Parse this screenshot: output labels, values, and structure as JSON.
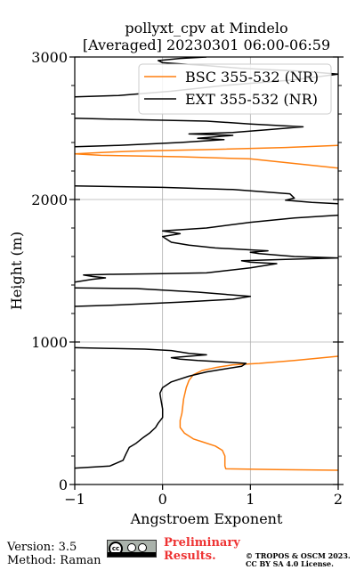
{
  "chart_data": {
    "type": "line",
    "title_line1": "pollyxt_cpv at Mindelo",
    "title_line2": "[Averaged] 20230301 06:00-06:59",
    "xlabel": "Angstroem Exponent",
    "ylabel": "Height (m)",
    "xlim": [
      -1,
      2
    ],
    "ylim": [
      0,
      3000
    ],
    "x_ticks": [
      "−1",
      "0",
      "1",
      "2"
    ],
    "y_ticks": [
      "0",
      "1000",
      "2000",
      "3000"
    ],
    "grid": true,
    "legend_position": "top-right",
    "series": [
      {
        "name": "BSC 355-532 (NR)",
        "color": "#ff7f0e",
        "points": [
          [
            2.0,
            100
          ],
          [
            1.3,
            105
          ],
          [
            0.72,
            110
          ],
          [
            0.71,
            130
          ],
          [
            0.71,
            200
          ],
          [
            0.68,
            240
          ],
          [
            0.6,
            270
          ],
          [
            0.45,
            300
          ],
          [
            0.35,
            320
          ],
          [
            0.25,
            360
          ],
          [
            0.2,
            400
          ],
          [
            0.2,
            450
          ],
          [
            0.22,
            500
          ],
          [
            0.24,
            600
          ],
          [
            0.27,
            680
          ],
          [
            0.3,
            730
          ],
          [
            0.35,
            770
          ],
          [
            0.45,
            800
          ],
          [
            0.6,
            820
          ],
          [
            0.8,
            840
          ],
          [
            1.1,
            850
          ],
          [
            1.5,
            870
          ],
          [
            2.0,
            900
          ],
          [
            null,
            null
          ],
          [
            2.0,
            2220
          ],
          [
            1.7,
            2240
          ],
          [
            1.0,
            2285
          ],
          [
            0.2,
            2300
          ],
          [
            -0.7,
            2310
          ],
          [
            -1.0,
            2320
          ],
          [
            -0.7,
            2330
          ],
          [
            -0.3,
            2340
          ],
          [
            0.5,
            2350
          ],
          [
            1.4,
            2365
          ],
          [
            2.0,
            2380
          ]
        ]
      },
      {
        "name": "EXT 355-532 (NR)",
        "color": "#000000",
        "points": [
          [
            -1.0,
            115
          ],
          [
            -0.6,
            130
          ],
          [
            -0.45,
            170
          ],
          [
            -0.42,
            210
          ],
          [
            -0.38,
            260
          ],
          [
            -0.3,
            290
          ],
          [
            -0.22,
            330
          ],
          [
            -0.15,
            360
          ],
          [
            -0.08,
            400
          ],
          [
            -0.05,
            430
          ],
          [
            0.0,
            470
          ],
          [
            0.0,
            530
          ],
          [
            -0.02,
            600
          ],
          [
            -0.03,
            640
          ],
          [
            0.0,
            680
          ],
          [
            0.1,
            720
          ],
          [
            0.3,
            760
          ],
          [
            0.5,
            790
          ],
          [
            0.7,
            810
          ],
          [
            0.9,
            830
          ],
          [
            0.95,
            850
          ],
          [
            0.7,
            860
          ],
          [
            0.4,
            870
          ],
          [
            0.2,
            880
          ],
          [
            0.1,
            890
          ],
          [
            0.3,
            900
          ],
          [
            0.5,
            910
          ],
          [
            0.3,
            920
          ],
          [
            0.1,
            940
          ],
          [
            -0.2,
            950
          ],
          [
            -0.6,
            955
          ],
          [
            -1.0,
            960
          ],
          [
            null,
            null
          ],
          [
            -1.0,
            1250
          ],
          [
            -0.5,
            1260
          ],
          [
            0.2,
            1280
          ],
          [
            0.8,
            1300
          ],
          [
            1.0,
            1320
          ],
          [
            0.4,
            1350
          ],
          [
            -0.3,
            1375
          ],
          [
            -1.0,
            1380
          ],
          [
            null,
            null
          ],
          [
            -1.0,
            1420
          ],
          [
            -0.8,
            1440
          ],
          [
            -0.65,
            1450
          ],
          [
            -0.8,
            1460
          ],
          [
            -0.9,
            1470
          ],
          [
            -0.6,
            1475
          ],
          [
            0.0,
            1480
          ],
          [
            0.5,
            1485
          ],
          [
            1.0,
            1520
          ],
          [
            1.3,
            1550
          ],
          [
            1.0,
            1560
          ],
          [
            0.9,
            1570
          ],
          [
            1.4,
            1580
          ],
          [
            2.0,
            1590
          ],
          [
            1.5,
            1600
          ],
          [
            1.1,
            1620
          ],
          [
            1.0,
            1630
          ],
          [
            1.2,
            1640
          ],
          [
            0.9,
            1650
          ],
          [
            0.6,
            1660
          ],
          [
            0.3,
            1680
          ],
          [
            0.1,
            1700
          ],
          [
            0.0,
            1740
          ],
          [
            0.2,
            1760
          ],
          [
            0.0,
            1780
          ],
          [
            0.5,
            1800
          ],
          [
            1.0,
            1840
          ],
          [
            1.5,
            1870
          ],
          [
            2.0,
            1890
          ],
          [
            null,
            null
          ],
          [
            2.0,
            1970
          ],
          [
            1.7,
            1980
          ],
          [
            1.4,
            1995
          ],
          [
            1.5,
            2010
          ],
          [
            1.45,
            2040
          ],
          [
            0.8,
            2070
          ],
          [
            0.0,
            2085
          ],
          [
            -1.0,
            2095
          ],
          [
            null,
            null
          ],
          [
            -1.0,
            2370
          ],
          [
            -0.5,
            2380
          ],
          [
            0.2,
            2400
          ],
          [
            0.7,
            2420
          ],
          [
            0.4,
            2430
          ],
          [
            0.6,
            2440
          ],
          [
            0.8,
            2450
          ],
          [
            0.3,
            2460
          ],
          [
            0.8,
            2470
          ],
          [
            1.2,
            2490
          ],
          [
            1.6,
            2510
          ],
          [
            1.0,
            2530
          ],
          [
            0.5,
            2550
          ],
          [
            -0.3,
            2560
          ],
          [
            -1.0,
            2570
          ],
          [
            null,
            null
          ],
          [
            -1.0,
            2720
          ],
          [
            -0.5,
            2730
          ],
          [
            0.1,
            2760
          ],
          [
            0.7,
            2800
          ],
          [
            1.5,
            2840
          ],
          [
            2.0,
            2880
          ],
          [
            1.6,
            2900
          ],
          [
            0.9,
            2920
          ],
          [
            0.5,
            2940
          ],
          [
            0.0,
            2960
          ],
          [
            -0.05,
            2975
          ],
          [
            0.2,
            2990
          ],
          [
            0.5,
            3000
          ]
        ]
      }
    ]
  },
  "footer": {
    "version": "Version: 3.5",
    "method": "Method: Raman",
    "cc_badge_text": "cc",
    "preliminary_line1": "Preliminary",
    "preliminary_line2": "Results.",
    "copyright_line1": "© TROPOS & OSCM 2023.",
    "copyright_line2": "CC BY SA 4.0 License."
  }
}
